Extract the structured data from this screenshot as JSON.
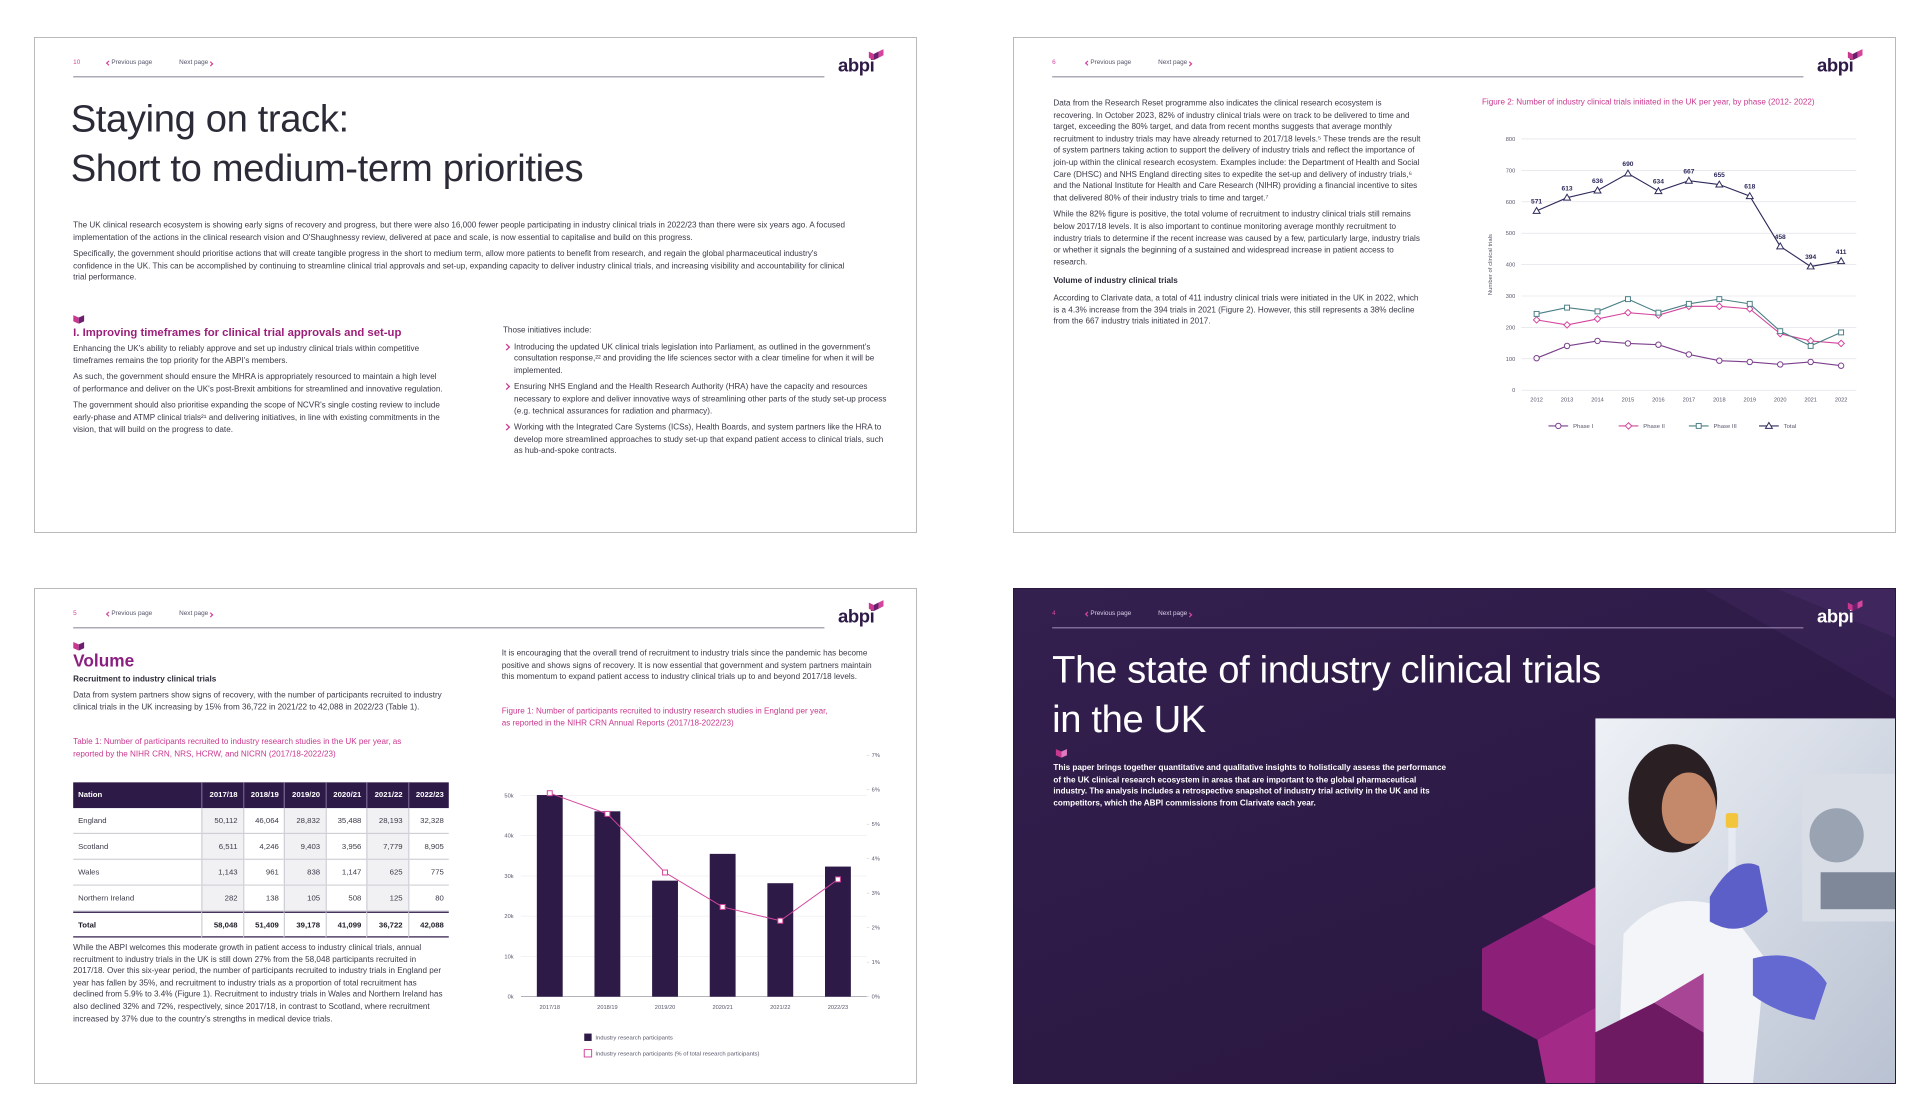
{
  "pages": [
    {
      "page_number": "10",
      "nav": {
        "previous": "Previous page",
        "next": "Next page"
      },
      "logo": "abpi",
      "title": [
        "Staying on track:",
        "Short to medium-term priorities"
      ],
      "intro": [
        "The UK clinical research ecosystem is showing early signs of recovery and progress, but there were also 16,000 fewer people participating in industry clinical trials in 2022/23 than there were six years ago. A focused implementation of the actions in the clinical research vision and O'Shaughnessy review, delivered at pace and scale, is now essential to capitalise and build on this progress.",
        "Specifically, the government should prioritise actions that will create tangible progress in the short to medium term, allow more patients to benefit from research, and regain the global pharmaceutical industry's confidence in the UK. This can be accomplished by continuing to streamline clinical trial approvals and set-up, expanding capacity to deliver industry clinical trials, and increasing visibility and accountability for clinical trial performance."
      ],
      "section_heading": "I. Improving timeframes for clinical trial approvals and set-up",
      "left_paragraphs": [
        "Enhancing the UK's ability to reliably approve and set up industry clinical trials within competitive timeframes remains the top priority for the ABPI's members.",
        "As such, the government should ensure the MHRA is appropriately resourced to maintain a high level of performance and deliver on the UK's post-Brexit ambitions for streamlined and innovative regulation.",
        "The government should also prioritise expanding the scope of NCVR's single costing review to include early-phase and ATMP clinical trials²¹ and delivering initiatives, in line with existing commitments in the vision, that will build on the progress to date."
      ],
      "right_intro": "Those initiatives include:",
      "bullets": [
        "Introducing the updated UK clinical trials legislation into Parliament, as outlined in the government's consultation response,²² and providing the life sciences sector with a clear timeline for when it will be implemented.",
        "Ensuring NHS England and the Health Research Authority (HRA) have the capacity and resources necessary to explore and deliver innovative ways of streamlining other parts of the study set-up process (e.g. technical assurances for radiation and pharmacy).",
        "Working with the Integrated Care Systems (ICSs), Health Boards, and system partners like the HRA to develop more streamlined approaches to study set-up that expand patient access to clinical trials, such as hub-and-spoke contracts."
      ]
    },
    {
      "page_number": "6",
      "nav": {
        "previous": "Previous page",
        "next": "Next page"
      },
      "logo": "abpi",
      "paragraphs": [
        "Data from the Research Reset programme also indicates the clinical research ecosystem is recovering. In October 2023, 82% of industry clinical trials were on track to be delivered to time and target, exceeding the 80% target, and data from recent months suggests that average monthly recruitment to industry trials may have already returned to 2017/18 levels.⁵ These trends are the result of system partners taking action to support the delivery of industry trials and reflect the importance of join-up within the clinical research ecosystem. Examples include: the Department of Health and Social Care (DHSC) and NHS England directing sites to expedite the set-up and delivery of industry trials,⁶ and the National Institute for Health and Care Research (NIHR) providing a financial incentive to sites that delivered 80% of their industry trials to time and target.⁷",
        "While the 82% figure is positive, the total volume of recruitment to industry clinical trials still remains below 2017/18 levels. It is also important to continue monitoring average monthly recruitment to industry trials to determine if the recent increase was caused by a few, particularly large, industry trials or whether it signals the beginning of a sustained and widespread increase in patient access to research."
      ],
      "subheading": "Volume of industry clinical trials",
      "closing_paragraph": "According to Clarivate data, a total of 411 industry clinical trials were initiated in the UK in 2022, which is a 4.3% increase from the 394 trials in 2021 (Figure 2). However, this still represents a 38% decline from the 667 industry trials initiated in 2017.",
      "chart": {
        "type": "line",
        "title": "Figure 2: Number of industry clinical trials initiated in the UK per year, by phase (2012- 2022)",
        "y_label": "Number of clinical trials",
        "categories": [
          "2012",
          "2013",
          "2014",
          "2015",
          "2016",
          "2017",
          "2018",
          "2019",
          "2020",
          "2021",
          "2022"
        ],
        "series": [
          {
            "name": "Phase I",
            "color": "#7b3f8c",
            "marker": "circle",
            "values": [
              102,
              141,
              157,
              149,
              145,
              114,
              94,
              90,
              82,
              90,
              78
            ]
          },
          {
            "name": "Phase II",
            "color": "#d4459e",
            "marker": "diamond",
            "values": [
              224,
              208,
              227,
              247,
              239,
              267,
              267,
              259,
              180,
              157,
              149
            ]
          },
          {
            "name": "Phase III",
            "color": "#4a7f86",
            "marker": "square",
            "values": [
              243,
              263,
              251,
              290,
              247,
              275,
              290,
              275,
              188,
              141,
              184
            ]
          },
          {
            "name": "Total",
            "color": "#2d2a5a",
            "marker": "triangle",
            "show_labels": true,
            "values": [
              571,
              613,
              636,
              690,
              634,
              667,
              655,
              618,
              458,
              394,
              411
            ]
          }
        ],
        "ylim": [
          0,
          800
        ],
        "yticks": [
          0,
          100,
          200,
          300,
          400,
          500,
          600,
          700,
          800
        ],
        "grid": true,
        "legend": "bottom"
      }
    },
    {
      "page_number": "5",
      "nav": {
        "previous": "Previous page",
        "next": "Next page"
      },
      "logo": "abpi",
      "title": "Volume",
      "subheading": "Recruitment to industry clinical trials",
      "paragraphs": [
        "Data from system partners show signs of recovery, with the number of participants recruited to industry clinical trials in the UK increasing by 15% from 36,722 in 2021/22 to 42,088 in 2022/23 (Table 1)."
      ],
      "table": {
        "title": "Table 1: Number of participants recruited to industry research studies in the UK per year, as reported by the NIHR CRN, NRS, HCRW, and NICRN (2017/18-2022/23)",
        "columns": [
          "Nation",
          "2017/18",
          "2018/19",
          "2019/20",
          "2020/21",
          "2021/22",
          "2022/23"
        ],
        "rows": [
          [
            "England",
            "50,112",
            "46,064",
            "28,832",
            "35,488",
            "28,193",
            "32,328"
          ],
          [
            "Scotland",
            "6,511",
            "4,246",
            "9,403",
            "3,956",
            "7,779",
            "8,905"
          ],
          [
            "Wales",
            "1,143",
            "961",
            "838",
            "1,147",
            "625",
            "775"
          ],
          [
            "Northern Ireland",
            "282",
            "138",
            "105",
            "508",
            "125",
            "80"
          ],
          [
            "Total",
            "58,048",
            "51,409",
            "39,178",
            "41,099",
            "36,722",
            "42,088"
          ]
        ]
      },
      "closing_paragraph": "While the ABPI welcomes this moderate growth in patient access to industry clinical trials, annual recruitment to industry trials in the UK is still down 27% from the 58,048 participants recruited in 2017/18. Over this six-year period, the number of participants recruited to industry trials in England per year has fallen by 35%, and recruitment to industry trials as a proportion of total recruitment has declined from 5.9% to 3.4% (Figure 1). Recruitment to industry trials in Wales and Northern Ireland has also declined 32% and 72%, respectively, since 2017/18, in contrast to Scotland, where recruitment increased by 37% due to the country's strengths in medical device trials.",
      "right_paragraph": "It is encouraging that the overall trend of recruitment to industry trials since the pandemic has become positive and shows signs of recovery. It is now essential that government and system partners maintain this momentum to expand patient access to industry clinical trials up to and beyond 2017/18 levels.",
      "chart": {
        "type": "bar",
        "title": "Figure 1: Number of participants recruited to industry research studies in England per year, as reported in the NIHR CRN Annual Reports (2017/18-2022/23)",
        "categories": [
          "2017/18",
          "2018/19",
          "2019/20",
          "2020/21",
          "2021/22",
          "2022/23"
        ],
        "series": [
          {
            "name": "Industry research participants",
            "type": "bar",
            "color": "#2e1a47",
            "values": [
              50112,
              46064,
              28832,
              35488,
              28193,
              32328
            ]
          },
          {
            "name": "Industry research participants (% of total research participants)",
            "type": "line",
            "axis": "y2",
            "color": "#d4459e",
            "values": [
              5.9,
              5.3,
              3.6,
              2.6,
              2.2,
              3.4
            ]
          }
        ],
        "ylim": [
          0,
          60000
        ],
        "yticks": [
          {
            "value": 0,
            "label": "0k"
          },
          {
            "value": 10000,
            "label": "10k"
          },
          {
            "value": 20000,
            "label": "20k"
          },
          {
            "value": 30000,
            "label": "30k"
          },
          {
            "value": 40000,
            "label": "40k"
          },
          {
            "value": 50000,
            "label": "50k"
          }
        ],
        "y2lim": [
          0,
          7
        ],
        "y2ticks": [
          {
            "value": 0,
            "label": "0%"
          },
          {
            "value": 1,
            "label": "1%"
          },
          {
            "value": 2,
            "label": "2%"
          },
          {
            "value": 3,
            "label": "3%"
          },
          {
            "value": 4,
            "label": "4%"
          },
          {
            "value": 5,
            "label": "5%"
          },
          {
            "value": 6,
            "label": "6%"
          },
          {
            "value": 7,
            "label": "7%"
          }
        ],
        "grid": true,
        "legend": "bottom"
      }
    },
    {
      "page_number": "4",
      "nav": {
        "previous": "Previous page",
        "next": "Next page"
      },
      "logo": "abpi",
      "title": [
        "The state of industry clinical trials",
        "in the UK"
      ],
      "summary": "This paper brings together quantitative and qualitative insights to holistically assess the performance of the UK clinical research ecosystem in areas that are important to the global pharmaceutical industry. The analysis includes a retrospective snapshot of industry trial activity in the UK and its competitors, which the ABPI commissions from Clarivate each year."
    }
  ]
}
